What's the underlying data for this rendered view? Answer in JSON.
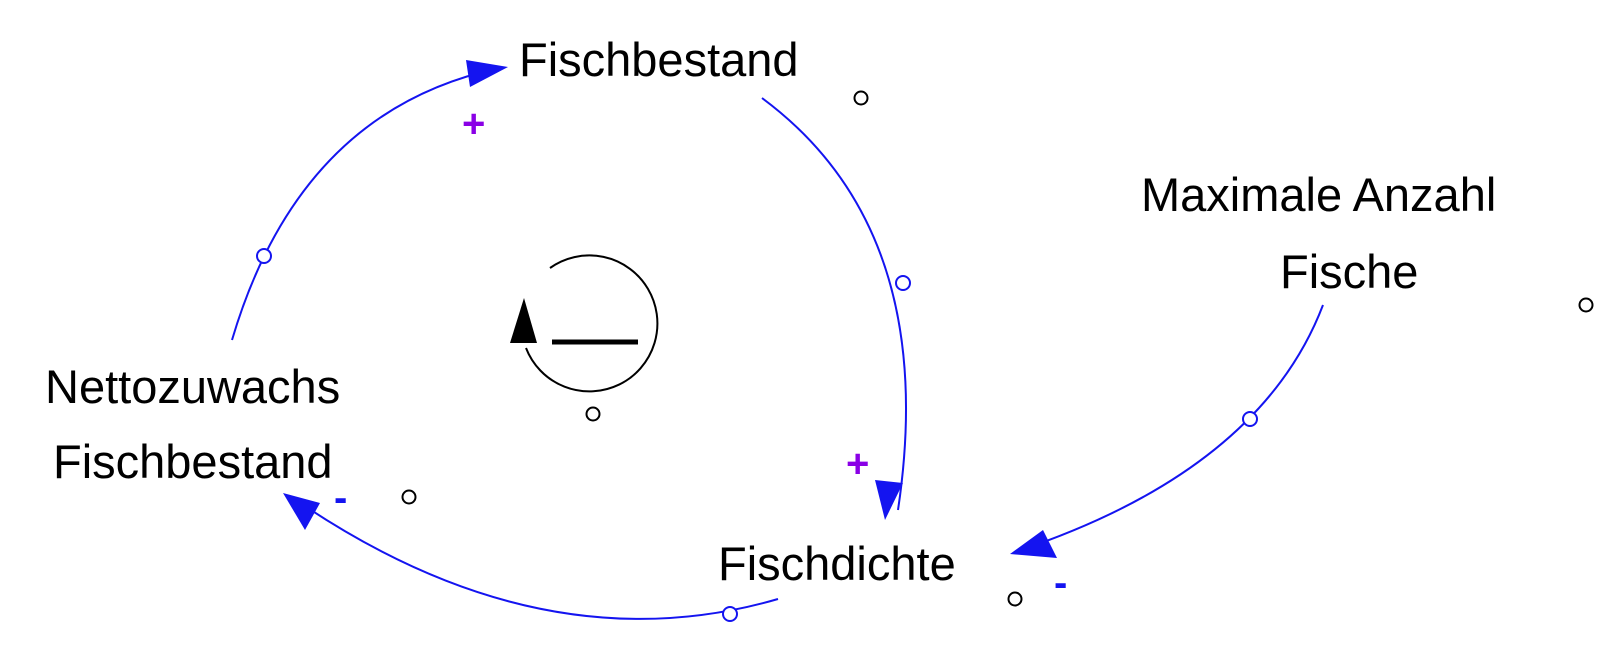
{
  "variables": {
    "fischbestand": "Fischbestand",
    "fischdichte": "Fischdichte",
    "nettozuwachs_line1": "Nettozuwachs",
    "nettozuwachs_line2": "Fischbestand",
    "maximale_line1": "Maximale Anzahl",
    "maximale_line2": "Fische"
  },
  "polarities": {
    "nettozuwachs_to_fischbestand": "+",
    "fischbestand_to_fischdichte": "+",
    "fischdichte_to_nettozuwachs": "-",
    "maximale_to_fischdichte": "-"
  },
  "loop": {
    "polarity": "negative (balancing)"
  },
  "colors": {
    "link": "#1414f0",
    "polarity_plus": "#8a00e6",
    "polarity_minus": "#1414f0",
    "text": "#000000",
    "loop_symbol": "#000000"
  }
}
